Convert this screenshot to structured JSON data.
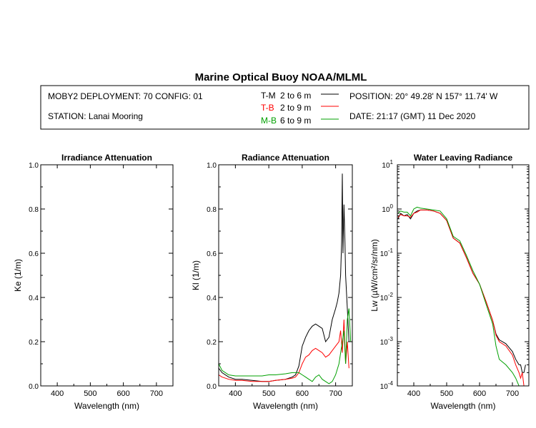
{
  "title": "Marine Optical Buoy NOAA/MLML",
  "header": {
    "deployment": "MOBY2 DEPLOYMENT: 70 CONFIG: 01",
    "station": "STATION: Lanai Mooring",
    "position": "POSITION: 20° 49.28' N   157° 11.74' W",
    "date": "DATE: 21:17 (GMT) 11 Dec 2020",
    "legend": [
      {
        "code": "T-M",
        "depth": "2 to 6  m",
        "color": "#000000"
      },
      {
        "code": "T-B",
        "depth": "2 to 9  m",
        "color": "#ff0000"
      },
      {
        "code": "M-B",
        "depth": "6 to 9  m",
        "color": "#00a000"
      }
    ]
  },
  "colors": {
    "tm": "#000000",
    "tb": "#ff0000",
    "mb": "#00a000"
  },
  "chart_data": [
    {
      "type": "line",
      "title": "Irradiance Attenuation",
      "xlabel": "Wavelength (nm)",
      "ylabel": "Ke  (1/m)",
      "xlim": [
        350,
        750
      ],
      "ylim": [
        0,
        1
      ],
      "xticks": [
        "400",
        "500",
        "600",
        "700"
      ],
      "yticks": [
        "0.0",
        "0.2",
        "0.4",
        "0.6",
        "0.8",
        "1.0"
      ],
      "series": []
    },
    {
      "type": "line",
      "title": "Radiance Attenuation",
      "xlabel": "Wavelength (nm)",
      "ylabel": "Kl  (1/m)",
      "xlim": [
        350,
        750
      ],
      "ylim": [
        0,
        1
      ],
      "xticks": [
        "400",
        "500",
        "600",
        "700"
      ],
      "yticks": [
        "0.0",
        "0.2",
        "0.4",
        "0.6",
        "0.8",
        "1.0"
      ],
      "series": [
        {
          "name": "T-M",
          "color": "#000000",
          "x": [
            350,
            360,
            380,
            400,
            420,
            450,
            480,
            500,
            520,
            550,
            570,
            580,
            590,
            600,
            610,
            620,
            630,
            640,
            650,
            660,
            670,
            680,
            690,
            700,
            705,
            710,
            715,
            718,
            720,
            722,
            725,
            728,
            730,
            735,
            740
          ],
          "y": [
            0.08,
            0.06,
            0.04,
            0.03,
            0.03,
            0.025,
            0.02,
            0.02,
            0.025,
            0.03,
            0.04,
            0.05,
            0.09,
            0.18,
            0.22,
            0.25,
            0.27,
            0.28,
            0.27,
            0.26,
            0.2,
            0.22,
            0.3,
            0.35,
            0.38,
            0.42,
            0.5,
            0.65,
            0.96,
            0.6,
            0.82,
            0.65,
            0.5,
            0.35,
            0.2
          ]
        },
        {
          "name": "T-B",
          "color": "#ff0000",
          "x": [
            350,
            360,
            380,
            400,
            420,
            450,
            480,
            500,
            520,
            550,
            570,
            580,
            590,
            600,
            610,
            620,
            630,
            640,
            650,
            660,
            670,
            680,
            690,
            700,
            710,
            715,
            720,
            725,
            730,
            735,
            740
          ],
          "y": [
            0.05,
            0.04,
            0.03,
            0.025,
            0.025,
            0.02,
            0.02,
            0.02,
            0.025,
            0.03,
            0.035,
            0.04,
            0.06,
            0.1,
            0.13,
            0.14,
            0.16,
            0.17,
            0.16,
            0.15,
            0.13,
            0.14,
            0.16,
            0.18,
            0.2,
            0.25,
            0.15,
            0.3,
            0.1,
            0.2,
            0.08
          ]
        },
        {
          "name": "M-B",
          "color": "#00a000",
          "x": [
            350,
            360,
            380,
            400,
            420,
            450,
            480,
            500,
            520,
            550,
            570,
            580,
            590,
            600,
            610,
            620,
            630,
            640,
            650,
            660,
            670,
            680,
            690,
            700,
            710,
            720,
            725,
            730,
            735,
            740,
            745
          ],
          "y": [
            0.1,
            0.07,
            0.05,
            0.045,
            0.045,
            0.045,
            0.045,
            0.05,
            0.05,
            0.055,
            0.06,
            0.06,
            0.06,
            0.05,
            0.04,
            0.03,
            0.02,
            0.04,
            0.05,
            0.03,
            0.02,
            0.01,
            0.02,
            0.05,
            0.1,
            0.2,
            0.25,
            0.1,
            0.3,
            0.35,
            0.2
          ]
        }
      ]
    },
    {
      "type": "line",
      "title": "Water Leaving Radiance",
      "xlabel": "Wavelength (nm)",
      "ylabel": "Lw  (µW/cm²/sr/nm)",
      "yscale": "log",
      "xlim": [
        350,
        750
      ],
      "ylim": [
        0.0001,
        10
      ],
      "xticks": [
        "400",
        "500",
        "600",
        "700"
      ],
      "yticks": [
        {
          "base": "10",
          "exp": "-4"
        },
        {
          "base": "10",
          "exp": "-3"
        },
        {
          "base": "10",
          "exp": "-2"
        },
        {
          "base": "10",
          "exp": "-1"
        },
        {
          "base": "10",
          "exp": "0"
        },
        {
          "base": "10",
          "exp": "1"
        }
      ],
      "series": [
        {
          "name": "T-M",
          "color": "#000000",
          "x": [
            352,
            360,
            370,
            380,
            390,
            400,
            410,
            420,
            440,
            460,
            480,
            500,
            520,
            540,
            560,
            580,
            600,
            620,
            640,
            650,
            660,
            680,
            700,
            710,
            720,
            725,
            730,
            735,
            740
          ],
          "y": [
            0.6,
            0.8,
            0.7,
            0.75,
            0.6,
            0.8,
            0.9,
            0.95,
            0.95,
            0.9,
            0.8,
            0.55,
            0.22,
            0.17,
            0.08,
            0.035,
            0.02,
            0.008,
            0.003,
            0.0015,
            0.0011,
            0.0009,
            0.0006,
            0.0004,
            0.0003,
            0.0003,
            0.0002,
            0.0002,
            0.0003
          ]
        },
        {
          "name": "T-B",
          "color": "#ff0000",
          "x": [
            352,
            360,
            370,
            380,
            390,
            400,
            410,
            420,
            440,
            460,
            480,
            500,
            520,
            540,
            560,
            580,
            600,
            620,
            640,
            650,
            660,
            680,
            700,
            710,
            720,
            725,
            730,
            735
          ],
          "y": [
            0.65,
            0.75,
            0.7,
            0.7,
            0.65,
            0.8,
            0.85,
            0.95,
            0.95,
            0.9,
            0.8,
            0.55,
            0.22,
            0.17,
            0.08,
            0.035,
            0.02,
            0.008,
            0.003,
            0.0014,
            0.001,
            0.0008,
            0.0005,
            0.0003,
            0.0002,
            0.00015,
            0.0002,
            0.0001
          ]
        },
        {
          "name": "M-B",
          "color": "#00a000",
          "x": [
            352,
            360,
            370,
            380,
            390,
            400,
            410,
            420,
            440,
            460,
            480,
            500,
            520,
            540,
            560,
            580,
            600,
            620,
            640,
            650,
            660,
            680,
            700,
            710,
            720,
            725,
            730
          ],
          "y": [
            0.8,
            0.9,
            0.85,
            0.85,
            0.7,
            1.0,
            1.1,
            1.05,
            1.0,
            0.95,
            0.9,
            0.6,
            0.24,
            0.19,
            0.09,
            0.04,
            0.02,
            0.007,
            0.0025,
            0.0008,
            0.0004,
            0.0003,
            0.0002,
            0.00015,
            0.0001,
            0.0001,
            0.0001
          ]
        }
      ]
    }
  ]
}
